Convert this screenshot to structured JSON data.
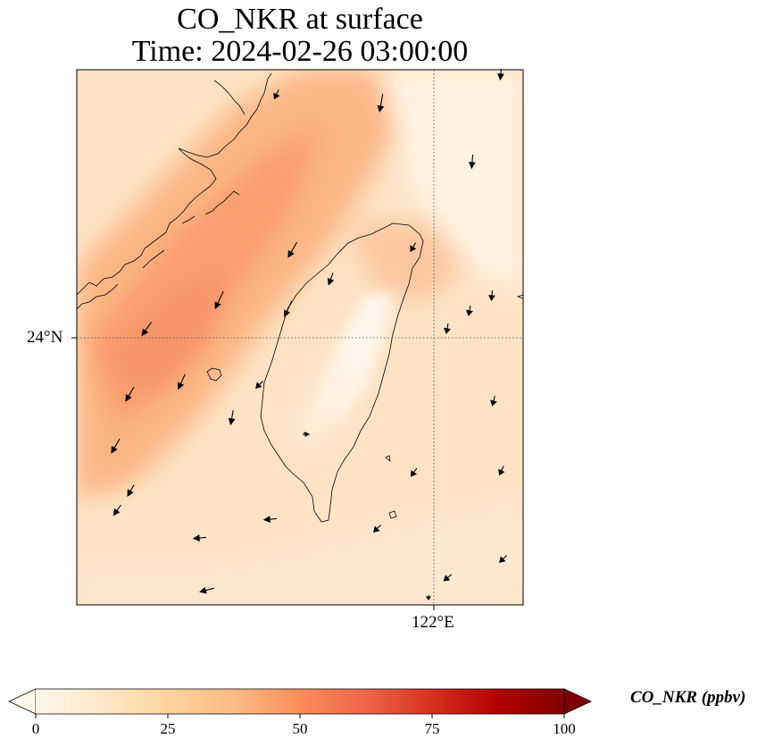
{
  "title": {
    "line1": "CO_NKR at surface",
    "line2": "Time: 2024-02-26 03:00:00"
  },
  "map": {
    "lat_label": "24°N",
    "lon_label": "122°E",
    "gridline_style": "dotted",
    "features": [
      "coastline",
      "wind-vectors",
      "concentration-field"
    ]
  },
  "colorbar": {
    "label": "CO_NKR (ppbv)",
    "ticks": [
      "0",
      "25",
      "50",
      "75",
      "100"
    ],
    "vmin": 0,
    "vmax": 100,
    "extend": "both",
    "colormap": "OrRd",
    "colors": [
      "#fff7ec",
      "#fee8c8",
      "#fdd49e",
      "#fdbb84",
      "#fc8d59",
      "#ef6548",
      "#d7301f",
      "#b30000",
      "#7f0000"
    ]
  }
}
